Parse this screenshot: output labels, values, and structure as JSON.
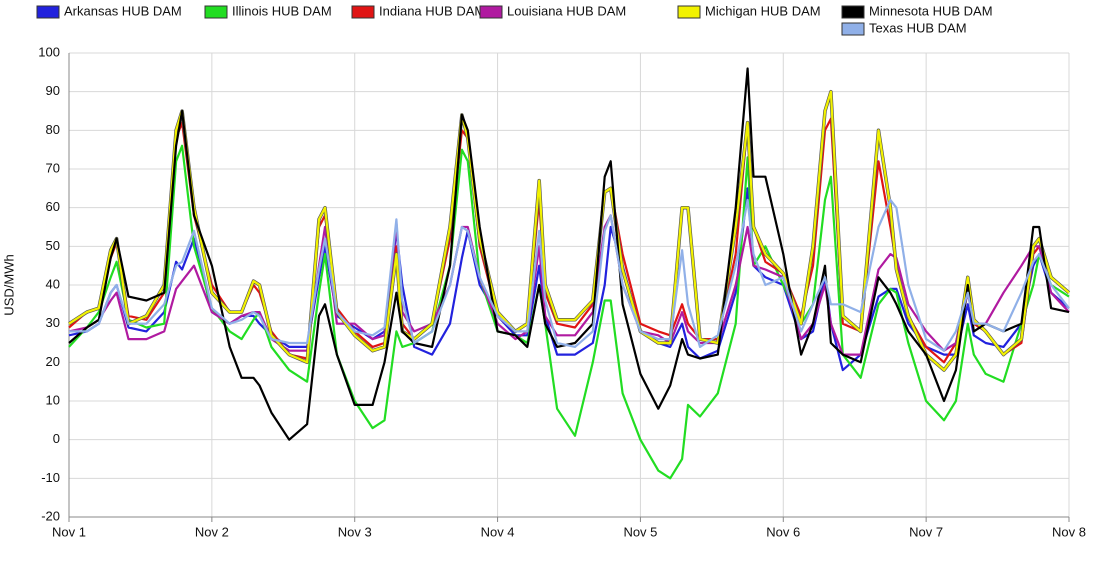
{
  "chart_data": {
    "type": "line",
    "y_label": "USD/MWh",
    "xlim": [
      0,
      168
    ],
    "xticks": [
      {
        "value": 0,
        "label": "Nov 1"
      },
      {
        "value": 24,
        "label": "Nov 2"
      },
      {
        "value": 48,
        "label": "Nov 3"
      },
      {
        "value": 72,
        "label": "Nov 4"
      },
      {
        "value": 96,
        "label": "Nov 5"
      },
      {
        "value": 120,
        "label": "Nov 6"
      },
      {
        "value": 144,
        "label": "Nov 7"
      },
      {
        "value": 168,
        "label": "Nov 8"
      }
    ],
    "ylim": [
      -20,
      100
    ],
    "yticks": [
      -20,
      -10,
      0,
      10,
      20,
      30,
      40,
      50,
      60,
      70,
      80,
      90,
      100
    ],
    "grid": true,
    "x": [
      0,
      3,
      5,
      7,
      8,
      10,
      13,
      16,
      18,
      19,
      21,
      24,
      27,
      29,
      31,
      32,
      34,
      37,
      40,
      42,
      43,
      45,
      48,
      51,
      53,
      55,
      56,
      58,
      61,
      64,
      66,
      67,
      69,
      72,
      75,
      77,
      79,
      80,
      82,
      85,
      88,
      90,
      91,
      93,
      96,
      99,
      101,
      103,
      104,
      106,
      109,
      112,
      114,
      115,
      117,
      120,
      123,
      125,
      127,
      128,
      130,
      133,
      136,
      138,
      139,
      141,
      144,
      147,
      149,
      151,
      152,
      154,
      157,
      160,
      162,
      163,
      165,
      168
    ],
    "series": [
      {
        "name": "Arkansas HUB DAM",
        "color": "#2222dd",
        "values": [
          27,
          28,
          30,
          38,
          40,
          29,
          28,
          33,
          46,
          44,
          52,
          33,
          30,
          32,
          32,
          30,
          27,
          24,
          24,
          42,
          50,
          32,
          29,
          26,
          28,
          54,
          40,
          24,
          22,
          30,
          47,
          54,
          40,
          32,
          27,
          27,
          45,
          32,
          22,
          22,
          25,
          40,
          55,
          45,
          28,
          25,
          24,
          30,
          24,
          21,
          23,
          38,
          65,
          45,
          42,
          40,
          26,
          28,
          42,
          30,
          18,
          22,
          37,
          39,
          39,
          30,
          24,
          22,
          22,
          35,
          27,
          25,
          24,
          30,
          45,
          48,
          38,
          34
        ]
      },
      {
        "name": "Illinois HUB DAM",
        "color": "#22dd22",
        "values": [
          24,
          29,
          33,
          42,
          46,
          31,
          29,
          30,
          72,
          76,
          50,
          34,
          28,
          26,
          31,
          33,
          24,
          18,
          15,
          38,
          48,
          22,
          10,
          3,
          5,
          28,
          24,
          25,
          28,
          45,
          75,
          72,
          42,
          28,
          27,
          25,
          40,
          30,
          8,
          1,
          20,
          36,
          36,
          12,
          0,
          -8,
          -10,
          -5,
          9,
          6,
          12,
          30,
          73,
          45,
          50,
          40,
          30,
          35,
          62,
          68,
          22,
          16,
          35,
          39,
          38,
          25,
          10,
          5,
          10,
          30,
          22,
          17,
          15,
          30,
          40,
          48,
          40,
          37
        ]
      },
      {
        "name": "Indiana HUB DAM",
        "color": "#e01414",
        "values": [
          29,
          33,
          34,
          47,
          51,
          32,
          31,
          38,
          78,
          82,
          58,
          40,
          33,
          33,
          40,
          38,
          28,
          22,
          21,
          55,
          58,
          34,
          28,
          24,
          25,
          50,
          30,
          26,
          30,
          52,
          80,
          78,
          50,
          32,
          28,
          30,
          62,
          38,
          30,
          29,
          35,
          64,
          65,
          48,
          30,
          28,
          27,
          35,
          30,
          26,
          26,
          48,
          82,
          55,
          46,
          43,
          32,
          45,
          80,
          83,
          30,
          28,
          72,
          55,
          45,
          32,
          24,
          20,
          25,
          40,
          30,
          28,
          22,
          25,
          48,
          50,
          42,
          38
        ]
      },
      {
        "name": "Louisiana HUB DAM",
        "color": "#b01aa0",
        "values": [
          28,
          29,
          31,
          36,
          38,
          26,
          26,
          28,
          39,
          41,
          45,
          33,
          30,
          32,
          33,
          33,
          26,
          23,
          23,
          45,
          55,
          30,
          30,
          26,
          27,
          56,
          33,
          28,
          30,
          40,
          55,
          55,
          42,
          30,
          26,
          28,
          50,
          32,
          27,
          27,
          33,
          55,
          58,
          40,
          28,
          27,
          25,
          33,
          28,
          25,
          25,
          40,
          55,
          45,
          44,
          42,
          26,
          30,
          40,
          30,
          22,
          22,
          44,
          48,
          47,
          35,
          28,
          23,
          25,
          38,
          30,
          30,
          38,
          45,
          50,
          50,
          38,
          33
        ]
      },
      {
        "name": "Michigan HUB DAM",
        "color": "#f2f200",
        "values": [
          30,
          33,
          34,
          49,
          52,
          30,
          32,
          40,
          80,
          85,
          60,
          38,
          33,
          33,
          41,
          40,
          27,
          22,
          20,
          57,
          60,
          33,
          27,
          23,
          24,
          48,
          28,
          26,
          30,
          55,
          84,
          78,
          52,
          33,
          28,
          30,
          67,
          40,
          31,
          31,
          36,
          64,
          65,
          44,
          28,
          25,
          25,
          60,
          60,
          26,
          25,
          55,
          82,
          55,
          48,
          43,
          30,
          50,
          85,
          90,
          32,
          28,
          80,
          60,
          44,
          32,
          22,
          18,
          22,
          42,
          31,
          28,
          22,
          26,
          50,
          52,
          42,
          38
        ]
      },
      {
        "name": "Minnesota HUB DAM",
        "color": "#000000",
        "values": [
          25,
          29,
          31,
          47,
          52,
          37,
          36,
          38,
          76,
          85,
          58,
          45,
          24,
          16,
          16,
          14,
          7,
          0,
          4,
          32,
          35,
          22,
          9,
          9,
          20,
          38,
          28,
          25,
          24,
          45,
          84,
          80,
          55,
          28,
          27,
          24,
          40,
          30,
          24,
          25,
          30,
          68,
          72,
          35,
          17,
          8,
          14,
          26,
          22,
          21,
          22,
          60,
          96,
          68,
          68,
          48,
          22,
          30,
          45,
          25,
          22,
          20,
          42,
          38,
          35,
          28,
          22,
          10,
          18,
          40,
          28,
          30,
          28,
          30,
          55,
          55,
          34,
          33
        ]
      },
      {
        "name": "Texas HUB DAM",
        "color": "#90b0e8",
        "values": [
          28,
          28,
          30,
          38,
          40,
          30,
          30,
          35,
          45,
          46,
          54,
          34,
          30,
          31,
          33,
          32,
          26,
          25,
          25,
          44,
          52,
          33,
          28,
          27,
          29,
          57,
          36,
          25,
          28,
          40,
          55,
          54,
          42,
          32,
          28,
          28,
          54,
          36,
          25,
          24,
          28,
          54,
          58,
          40,
          28,
          26,
          26,
          49,
          35,
          24,
          27,
          45,
          62,
          48,
          40,
          42,
          28,
          35,
          42,
          35,
          35,
          33,
          55,
          62,
          60,
          40,
          26,
          23,
          28,
          38,
          30,
          30,
          28,
          38,
          46,
          48,
          40,
          34
        ]
      }
    ]
  }
}
